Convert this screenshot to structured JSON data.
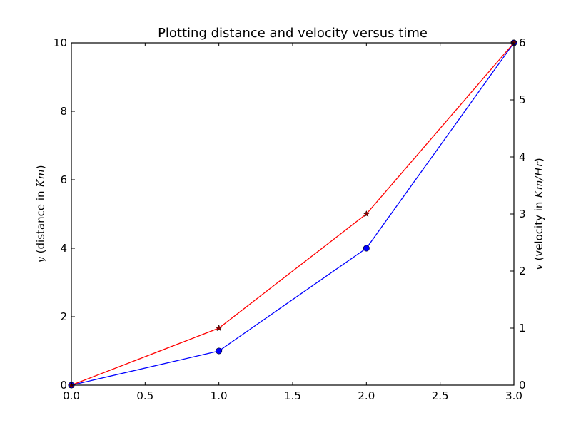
{
  "chart_data": {
    "type": "line",
    "title": "Plotting distance and velocity versus time",
    "xlabel": "",
    "ylabel": {
      "var": "y",
      "pre": " (distance in ",
      "unit": "Km",
      "post": ")"
    },
    "y2label": {
      "var": "v",
      "pre": " (velocity in ",
      "unit": "Km/Hr",
      "post": ")"
    },
    "xlim": [
      0,
      3
    ],
    "ylim": [
      0,
      10
    ],
    "y2lim": [
      0,
      6
    ],
    "x_ticks": [
      "0.0",
      "0.5",
      "1.0",
      "1.5",
      "2.0",
      "2.5",
      "3.0"
    ],
    "y_ticks": [
      "0",
      "2",
      "4",
      "6",
      "8",
      "10"
    ],
    "y2_ticks": [
      "0",
      "1",
      "2",
      "3",
      "4",
      "5",
      "6"
    ],
    "grid": false,
    "series": [
      {
        "axis": "left",
        "color": "#0000ff",
        "marker": "circle",
        "x": [
          0,
          1,
          2,
          3
        ],
        "y": [
          0,
          1,
          4,
          10
        ]
      },
      {
        "axis": "right",
        "color": "#ff0000",
        "marker_color": "#8b0000",
        "marker": "star",
        "x": [
          0,
          1,
          2,
          3
        ],
        "y": [
          0,
          1,
          3,
          6
        ]
      }
    ]
  }
}
